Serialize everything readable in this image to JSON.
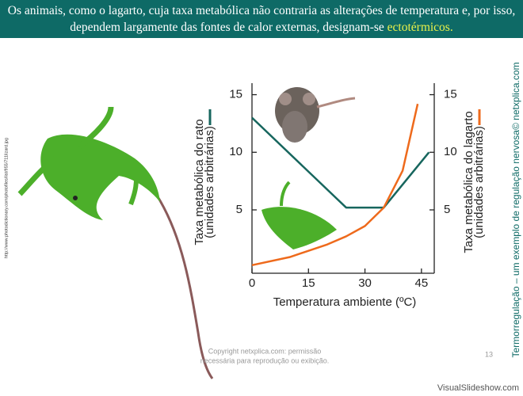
{
  "header": {
    "text": "Os animais, como o lagarto, cuja taxa metabólica não contraria as alterações de temperatura e, por isso, dependem largamente das fontes de calor externas, designam-se",
    "highlight": "ectotérmicos."
  },
  "chart_data": {
    "type": "line",
    "xlabel": "Temperatura ambiente (ºC)",
    "ylabel": [
      "Taxa metabólica do rato",
      "(unidades arbitrárias)"
    ],
    "y2label": [
      "Taxa metabólica do lagarto",
      "(unidades arbitrárias)"
    ],
    "xlim": [
      0,
      48.4
    ],
    "xticks": [
      0,
      15,
      30,
      45
    ],
    "ylim": [
      -0.5,
      16
    ],
    "yticks": [
      5,
      10,
      15
    ],
    "y2lim": [
      -0.5,
      16
    ],
    "y2ticks": [
      5,
      10,
      15
    ],
    "series": [
      {
        "color": "#17665e",
        "x": [
          0,
          25,
          35,
          47
        ],
        "values": [
          13,
          5.2,
          5.2,
          10
        ]
      },
      {
        "color": "#ee6a1c",
        "axis": "y2",
        "x": [
          0,
          10,
          20,
          25,
          30,
          35,
          40,
          44
        ],
        "values": [
          0.2,
          0.9,
          2,
          2.7,
          3.6,
          5.2,
          8.4,
          14.2
        ]
      }
    ]
  },
  "image_source": "http://www.photodictionary.com/photofiles/list/955/711lizard.jpg",
  "side_caption": "Termorregulação – um exemplo de regulação nervosa© netxplica.com",
  "copyright": [
    "Copyright netxplica.com: permissão",
    "necessária para reprodução ou exibição."
  ],
  "page_number": "13",
  "watermark": "VisualSlideshow.com"
}
